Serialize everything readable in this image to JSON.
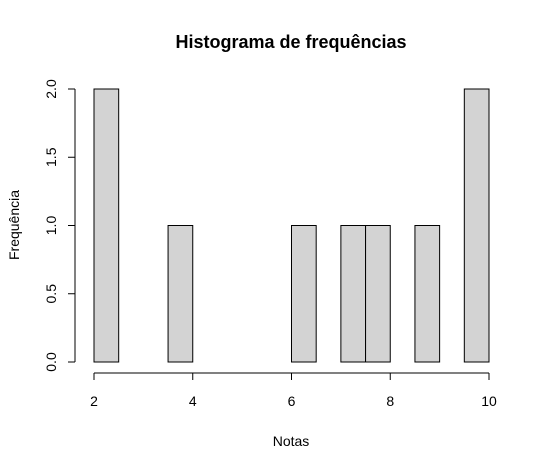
{
  "chart_data": {
    "type": "bar",
    "title": "Histograma de frequências",
    "xlabel": "Notas",
    "ylabel": "Frequência",
    "bins": [
      {
        "start": 2.0,
        "end": 2.5,
        "count": 2
      },
      {
        "start": 3.5,
        "end": 4.0,
        "count": 1
      },
      {
        "start": 6.0,
        "end": 6.5,
        "count": 1
      },
      {
        "start": 7.0,
        "end": 7.5,
        "count": 1
      },
      {
        "start": 7.5,
        "end": 8.0,
        "count": 1
      },
      {
        "start": 8.5,
        "end": 9.0,
        "count": 1
      },
      {
        "start": 9.5,
        "end": 10.0,
        "count": 2
      }
    ],
    "xlim": [
      2,
      10
    ],
    "ylim": [
      0,
      2
    ],
    "x_ticks": [
      2,
      4,
      6,
      8,
      10
    ],
    "x_tick_labels": [
      "2",
      "4",
      "6",
      "8",
      "10"
    ],
    "y_ticks": [
      0,
      0.5,
      1,
      1.5,
      2
    ],
    "y_tick_labels": [
      "0.0",
      "0.5",
      "1.0",
      "1.5",
      "2.0"
    ],
    "bar_fill": "#d3d3d3",
    "bar_stroke": "#000000",
    "grid": false
  }
}
